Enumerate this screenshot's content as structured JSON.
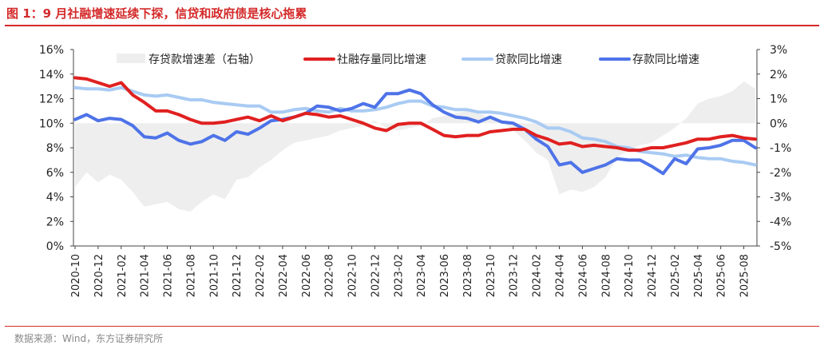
{
  "page": {
    "title": "图 1：9 月社融增速延续下探，信贷和政府债是核心拖累",
    "source": "数据来源：Wind，东方证券研究所"
  },
  "colors": {
    "accent": "#d42a2a",
    "spread_fill": "#eeeeee",
    "tsf": "#e02020",
    "loan": "#a9cbf3",
    "deposit": "#4e73e8",
    "axis_text": "#222222"
  },
  "chart_data": {
    "type": "line",
    "x": [
      "2020-10",
      "2020-11",
      "2020-12",
      "2021-01",
      "2021-02",
      "2021-03",
      "2021-04",
      "2021-05",
      "2021-06",
      "2021-07",
      "2021-08",
      "2021-09",
      "2021-10",
      "2021-11",
      "2021-12",
      "2022-01",
      "2022-02",
      "2022-03",
      "2022-04",
      "2022-05",
      "2022-06",
      "2022-07",
      "2022-08",
      "2022-09",
      "2022-10",
      "2022-11",
      "2022-12",
      "2023-01",
      "2023-02",
      "2023-03",
      "2023-04",
      "2023-05",
      "2023-06",
      "2023-07",
      "2023-08",
      "2023-09",
      "2023-10",
      "2023-11",
      "2023-12",
      "2024-01",
      "2024-02",
      "2024-03",
      "2024-04",
      "2024-05",
      "2024-06",
      "2024-07",
      "2024-08",
      "2024-09",
      "2024-10",
      "2024-11",
      "2024-12",
      "2025-01",
      "2025-02",
      "2025-03",
      "2025-04",
      "2025-05",
      "2025-06",
      "2025-07",
      "2025-08",
      "2025-09"
    ],
    "x_tick_labels": [
      "2020-10",
      "2020-12",
      "2021-02",
      "2021-04",
      "2021-06",
      "2021-08",
      "2021-10",
      "2021-12",
      "2022-02",
      "2022-04",
      "2022-06",
      "2022-08",
      "2022-10",
      "2022-12",
      "2023-02",
      "2023-04",
      "2023-06",
      "2023-08",
      "2023-10",
      "2023-12",
      "2024-02",
      "2024-04",
      "2024-06",
      "2024-08",
      "2024-10",
      "2024-12",
      "2025-02",
      "2025-04",
      "2025-06",
      "2025-08"
    ],
    "y_left": {
      "ticks": [
        "0%",
        "2%",
        "4%",
        "6%",
        "8%",
        "10%",
        "12%",
        "14%",
        "16%"
      ],
      "min": 0,
      "max": 16
    },
    "y_right": {
      "ticks": [
        "-5%",
        "-4%",
        "-3%",
        "-2%",
        "-1%",
        "0%",
        "1%",
        "2%",
        "3%"
      ],
      "min": -5,
      "max": 3
    },
    "legend_placement": "top",
    "series": [
      {
        "name": "存贷款增速差（右轴）",
        "type": "area",
        "axis": "right",
        "values": [
          -2.6,
          -2.0,
          -2.4,
          -2.1,
          -2.3,
          -2.8,
          -3.4,
          -3.3,
          -3.2,
          -3.5,
          -3.6,
          -3.2,
          -2.9,
          -3.1,
          -2.3,
          -2.2,
          -1.8,
          -1.5,
          -1.1,
          -0.8,
          -0.7,
          -0.6,
          -0.5,
          -0.3,
          -0.2,
          -0.1,
          0.1,
          -0.2,
          -0.3,
          -0.2,
          -0.1,
          0.2,
          0.3,
          0.4,
          0.5,
          0.4,
          0.2,
          0.1,
          -0.3,
          -0.7,
          -1.2,
          -1.5,
          -2.9,
          -2.7,
          -2.8,
          -2.6,
          -2.2,
          -1.4,
          -1.1,
          -0.9,
          -0.8,
          -0.5,
          -0.2,
          0.2,
          0.8,
          1.0,
          1.1,
          1.3,
          1.7,
          1.4
        ]
      },
      {
        "name": "社融存量同比增速",
        "type": "line",
        "axis": "left",
        "values": [
          13.7,
          13.6,
          13.3,
          13.0,
          13.3,
          12.3,
          11.7,
          11.0,
          11.0,
          10.7,
          10.3,
          10.0,
          10.0,
          10.1,
          10.3,
          10.5,
          10.2,
          10.6,
          10.2,
          10.5,
          10.8,
          10.7,
          10.5,
          10.6,
          10.3,
          10.0,
          9.6,
          9.4,
          9.9,
          10.0,
          10.0,
          9.5,
          9.0,
          8.9,
          9.0,
          9.0,
          9.3,
          9.4,
          9.5,
          9.5,
          9.0,
          8.7,
          8.3,
          8.4,
          8.1,
          8.2,
          8.1,
          8.0,
          7.8,
          7.8,
          8.0,
          8.0,
          8.2,
          8.4,
          8.7,
          8.7,
          8.9,
          9.0,
          8.8,
          8.7
        ]
      },
      {
        "name": "贷款同比增速",
        "type": "line",
        "axis": "left",
        "values": [
          12.9,
          12.8,
          12.8,
          12.7,
          12.9,
          12.6,
          12.3,
          12.2,
          12.3,
          12.1,
          11.9,
          11.9,
          11.7,
          11.6,
          11.5,
          11.4,
          11.4,
          10.9,
          10.9,
          11.1,
          11.2,
          11.0,
          10.9,
          11.2,
          11.0,
          11.0,
          11.1,
          11.3,
          11.6,
          11.8,
          11.8,
          11.4,
          11.3,
          11.1,
          11.1,
          10.9,
          10.9,
          10.8,
          10.6,
          10.4,
          10.1,
          9.6,
          9.6,
          9.3,
          8.8,
          8.7,
          8.5,
          8.1,
          8.0,
          7.7,
          7.6,
          7.5,
          7.3,
          7.4,
          7.2,
          7.1,
          7.1,
          6.9,
          6.8,
          6.6
        ]
      },
      {
        "name": "存款同比增速",
        "type": "line",
        "axis": "left",
        "values": [
          10.3,
          10.7,
          10.2,
          10.4,
          10.3,
          9.8,
          8.9,
          8.8,
          9.2,
          8.6,
          8.3,
          8.5,
          9.0,
          8.6,
          9.3,
          9.1,
          9.6,
          10.2,
          10.3,
          10.5,
          10.8,
          11.4,
          11.3,
          11.0,
          11.2,
          11.6,
          11.3,
          12.4,
          12.4,
          12.7,
          12.4,
          11.5,
          10.9,
          10.5,
          10.4,
          10.1,
          10.5,
          10.1,
          10.0,
          9.5,
          8.7,
          8.1,
          6.6,
          6.8,
          6.0,
          6.3,
          6.6,
          7.1,
          7.0,
          7.0,
          6.5,
          5.9,
          7.1,
          6.7,
          7.9,
          8.0,
          8.2,
          8.6,
          8.6,
          8.0
        ]
      }
    ]
  }
}
